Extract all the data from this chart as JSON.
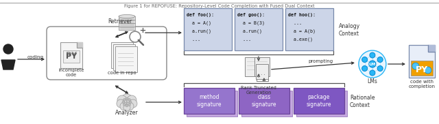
{
  "title": "Figure 1 for REPOFUSE: Repository-Level Code Completion with Fused Dual Context",
  "bg_color": "#ffffff",
  "code_box_color": "#ccd5e8",
  "code_box_edge": "#7788aa",
  "purple_dark": "#7b5ea7",
  "purple_mid": "#9b7fc4",
  "purple_light": "#b89fd4",
  "arrow_color": "#333333",
  "text_color": "#111111",
  "gray_color": "#aaaaaa",
  "lm_blue": "#29b6f6",
  "lm_edge": "#0288d1",
  "lm_node_color": "#29b6f6",
  "code_box1_line1": "def foo():",
  "code_box1_rest": "  a = A()\n  a.run()\n  ...",
  "code_box2_line1": "def goo():",
  "code_box2_rest": "  a = B(3)\n  a.run()\n  ...",
  "code_box3_line1": "def hoo():",
  "code_box3_rest": "  ...\n  a = A(b)\n  a.exe()",
  "label_retriever": "Retriever",
  "label_analyzer": "Analyzer",
  "label_coding": "coding",
  "label_incomplete": "incomplete\ncode",
  "label_coderepo": "code in repo",
  "label_rank": "Rank Truncated\nGeneration",
  "label_prompting": "prompting",
  "label_lms": "LMs",
  "label_codewith": "code with\ncompletion",
  "label_analogy": "Analogy\nContext",
  "label_rationale": "Rationale\nContext",
  "label_method": "method\nsignature",
  "label_class": "class\nsignature",
  "label_package": "package\nsignature",
  "label_py": "PY",
  "label_lm": "LM"
}
